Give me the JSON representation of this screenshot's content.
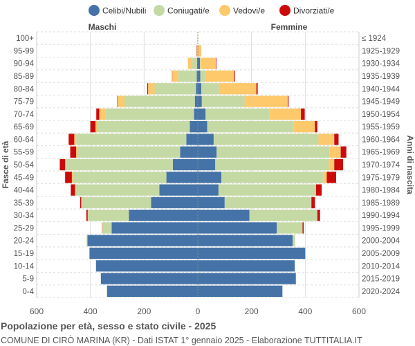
{
  "chart_data": {
    "type": "bar",
    "title": "Popolazione per età, sesso e stato civile - 2025",
    "subtitle": "COMUNE DI CIRÒ MARINA (KR) - Dati ISTAT 1° gennaio 2025 - Elaborazione TUTTITALIA.IT",
    "left_label": "Maschi",
    "right_label": "Femmine",
    "ylabel_left": "Fasce di età",
    "ylabel_right": "Anni di nascita",
    "xlim": [
      -600,
      600
    ],
    "xticks": [
      "600",
      "400",
      "200",
      "0",
      "200",
      "400",
      "600"
    ],
    "grid": true,
    "legend_position": "top",
    "legend": [
      "Celibi/Nubili",
      "Coniugati/e",
      "Vedovi/e",
      "Divorziati/e"
    ],
    "colors": [
      "#4573a7",
      "#c5d9a5",
      "#fdc96b",
      "#cc0a0a"
    ],
    "age_groups": [
      "100+",
      "95-99",
      "90-94",
      "85-89",
      "80-84",
      "75-79",
      "70-74",
      "65-69",
      "60-64",
      "55-59",
      "50-54",
      "45-49",
      "40-44",
      "35-39",
      "30-34",
      "25-29",
      "20-24",
      "15-19",
      "10-14",
      "5-9",
      "0-4"
    ],
    "birth_years": [
      "≤ 1924",
      "1925-1929",
      "1930-1934",
      "1935-1939",
      "1940-1944",
      "1945-1949",
      "1950-1954",
      "1955-1959",
      "1960-1964",
      "1965-1969",
      "1970-1974",
      "1975-1979",
      "1980-1984",
      "1985-1989",
      "1990-1994",
      "1995-1999",
      "2000-2004",
      "2005-2009",
      "2010-2014",
      "2015-2019",
      "2020-2024"
    ],
    "males": {
      "Celibi/Nubili": [
        0,
        0,
        3,
        4,
        7,
        11,
        14,
        30,
        43,
        66,
        93,
        117,
        143,
        174,
        257,
        321,
        411,
        403,
        379,
        361,
        338
      ],
      "Coniugati/e": [
        0,
        0,
        18,
        69,
        154,
        262,
        329,
        342,
        410,
        381,
        398,
        349,
        312,
        259,
        152,
        34,
        3,
        1,
        0,
        0,
        1
      ],
      "Vedovi/e": [
        1,
        4,
        16,
        22,
        24,
        27,
        24,
        9,
        7,
        6,
        3,
        3,
        2,
        1,
        1,
        1,
        0,
        0,
        1,
        0,
        0
      ],
      "Divorziati/e": [
        0,
        1,
        0,
        1,
        3,
        1,
        11,
        19,
        21,
        22,
        20,
        25,
        16,
        4,
        5,
        1,
        0,
        0,
        0,
        0,
        0
      ]
    },
    "females": {
      "Celibi/Nubili": [
        0,
        1,
        8,
        9,
        13,
        15,
        29,
        35,
        59,
        70,
        65,
        88,
        77,
        100,
        192,
        294,
        353,
        400,
        361,
        365,
        315
      ],
      "Coniugati/e": [
        0,
        0,
        2,
        21,
        66,
        159,
        237,
        322,
        390,
        420,
        422,
        379,
        360,
        322,
        252,
        96,
        9,
        0,
        0,
        0,
        0
      ],
      "Vedovi/e": [
        1,
        12,
        57,
        105,
        139,
        161,
        118,
        79,
        59,
        42,
        21,
        13,
        3,
        1,
        1,
        0,
        0,
        0,
        0,
        0,
        0
      ],
      "Divorziati/e": [
        0,
        0,
        2,
        3,
        5,
        3,
        14,
        9,
        16,
        21,
        33,
        35,
        21,
        13,
        10,
        4,
        0,
        0,
        0,
        0,
        0
      ]
    }
  }
}
